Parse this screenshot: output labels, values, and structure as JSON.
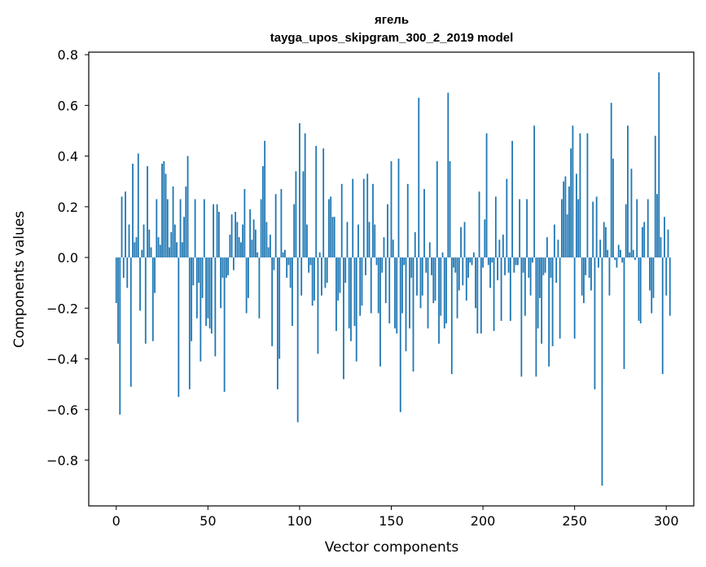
{
  "chart_data": {
    "type": "bar",
    "title": "ягель",
    "subtitle": "tayga_upos_skipgram_300_2_2019 model",
    "xlabel": "Vector components",
    "ylabel": "Components values",
    "xlim": [
      -15,
      315
    ],
    "ylim": [
      -0.98,
      0.81
    ],
    "xticks": [
      0,
      50,
      100,
      150,
      200,
      250,
      300
    ],
    "xtick_labels": [
      "0",
      "50",
      "100",
      "150",
      "200",
      "250",
      "300"
    ],
    "yticks": [
      0.8,
      0.6,
      0.4,
      0.2,
      0.0,
      -0.2,
      -0.4,
      -0.6,
      -0.8
    ],
    "ytick_labels": [
      "0.8",
      "0.6",
      "0.4",
      "0.2",
      "0.0",
      "−0.2",
      "−0.4",
      "−0.6",
      "−0.8"
    ],
    "bar_color": "#1f77b4",
    "values": [
      -0.18,
      -0.34,
      -0.62,
      0.24,
      -0.08,
      0.26,
      -0.12,
      0.13,
      -0.51,
      0.37,
      0.06,
      0.08,
      0.41,
      -0.21,
      0.03,
      0.13,
      -0.34,
      0.36,
      0.11,
      0.04,
      -0.33,
      -0.14,
      0.23,
      0.08,
      0.05,
      0.37,
      0.38,
      0.33,
      0.23,
      0.04,
      0.1,
      0.28,
      0.13,
      0.06,
      -0.55,
      0.23,
      0.06,
      0.16,
      0.28,
      0.4,
      -0.52,
      -0.33,
      -0.11,
      0.23,
      -0.24,
      -0.1,
      -0.41,
      -0.16,
      0.23,
      -0.27,
      -0.24,
      -0.28,
      -0.3,
      0.21,
      -0.39,
      0.21,
      0.18,
      -0.2,
      -0.08,
      -0.53,
      -0.08,
      -0.07,
      0.09,
      0.17,
      -0.05,
      0.18,
      0.14,
      0.08,
      0.06,
      0.13,
      0.27,
      -0.22,
      -0.16,
      0.19,
      0.07,
      0.15,
      0.11,
      0.02,
      -0.24,
      0.23,
      0.36,
      0.46,
      0.14,
      0.04,
      0.09,
      -0.35,
      -0.05,
      0.25,
      -0.52,
      -0.4,
      0.27,
      0.02,
      0.03,
      -0.08,
      -0.03,
      -0.12,
      -0.27,
      0.21,
      0.34,
      -0.65,
      0.53,
      -0.15,
      0.34,
      0.49,
      0.13,
      -0.06,
      -0.03,
      -0.19,
      -0.17,
      0.44,
      -0.38,
      0.02,
      -0.15,
      0.43,
      -0.12,
      -0.1,
      0.23,
      0.24,
      0.16,
      0.16,
      -0.29,
      -0.17,
      -0.14,
      0.29,
      -0.48,
      -0.1,
      0.14,
      -0.28,
      -0.33,
      0.31,
      -0.27,
      -0.41,
      0.13,
      -0.23,
      -0.19,
      0.31,
      -0.07,
      0.33,
      0.14,
      -0.22,
      0.29,
      0.13,
      -0.03,
      -0.22,
      -0.43,
      -0.06,
      0.08,
      -0.18,
      0.21,
      -0.26,
      0.38,
      0.07,
      -0.28,
      -0.3,
      0.39,
      -0.61,
      -0.22,
      -0.03,
      -0.37,
      0.29,
      -0.28,
      -0.08,
      -0.45,
      0.1,
      -0.15,
      0.63,
      -0.2,
      -0.15,
      0.27,
      -0.06,
      -0.28,
      0.06,
      -0.07,
      -0.18,
      -0.17,
      0.38,
      -0.34,
      -0.23,
      0.02,
      -0.28,
      -0.26,
      0.65,
      0.38,
      -0.46,
      -0.04,
      -0.06,
      -0.24,
      -0.13,
      0.12,
      -0.11,
      0.14,
      -0.17,
      -0.08,
      -0.02,
      -0.03,
      0.02,
      -0.2,
      -0.3,
      0.26,
      -0.3,
      -0.04,
      0.15,
      0.49,
      -0.03,
      -0.12,
      -0.02,
      -0.29,
      0.24,
      -0.09,
      0.07,
      -0.25,
      0.09,
      -0.07,
      0.31,
      -0.06,
      -0.25,
      0.46,
      -0.06,
      -0.03,
      -0.03,
      0.23,
      -0.47,
      -0.06,
      -0.23,
      0.23,
      -0.08,
      -0.15,
      -0.02,
      0.52,
      -0.47,
      -0.28,
      -0.16,
      -0.34,
      -0.07,
      -0.06,
      0.08,
      -0.43,
      -0.08,
      -0.35,
      0.13,
      -0.1,
      0.07,
      -0.32,
      0.23,
      0.3,
      0.32,
      0.17,
      0.28,
      0.43,
      0.52,
      -0.32,
      0.33,
      0.23,
      0.49,
      -0.15,
      -0.18,
      -0.07,
      0.49,
      -0.08,
      -0.13,
      0.22,
      -0.52,
      0.24,
      -0.04,
      0.07,
      -0.9,
      0.14,
      0.12,
      0.03,
      -0.15,
      0.61,
      0.39,
      -0.01,
      -0.04,
      0.05,
      0.03,
      -0.02,
      -0.44,
      0.21,
      0.52,
      0.02,
      0.35,
      0.03,
      -0.01,
      0.23,
      -0.25,
      -0.26,
      0.12,
      0.14,
      0.0,
      0.23,
      -0.13,
      -0.22,
      -0.16,
      0.48,
      0.25,
      0.73,
      0.08,
      -0.46,
      0.16,
      -0.15,
      0.11,
      -0.23
    ]
  }
}
